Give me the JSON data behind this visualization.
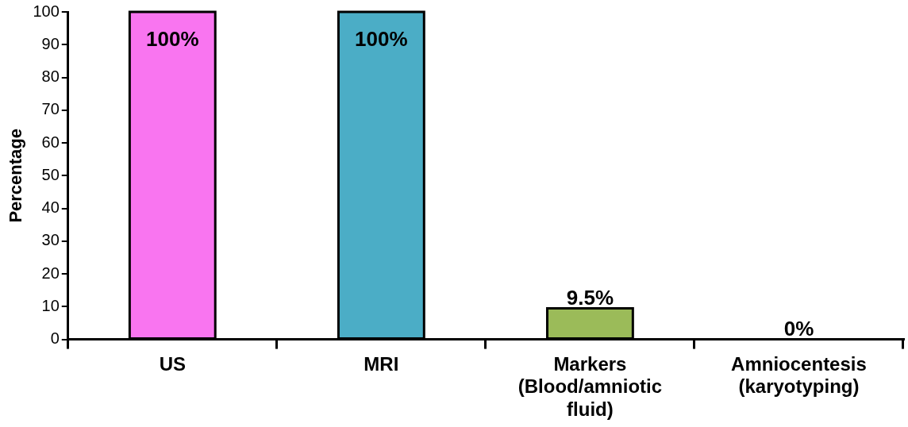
{
  "chart_data": {
    "type": "bar",
    "ylabel": "Percentage",
    "categories": [
      "US",
      "MRI",
      "Markers (Blood/amniotic fluid)",
      "Amniocentesis (karyotyping)"
    ],
    "values": [
      100,
      100,
      9.5,
      0
    ],
    "colors": [
      "#f975f0",
      "#4badc6",
      "#9bbb59",
      "#9bbb59"
    ],
    "value_labels": [
      "100%",
      "100%",
      "9.5%",
      "0%"
    ],
    "ylim": [
      0,
      100
    ],
    "yticks": [
      0,
      10,
      20,
      30,
      40,
      50,
      60,
      70,
      80,
      90,
      100
    ],
    "grid": false,
    "legend": false
  }
}
